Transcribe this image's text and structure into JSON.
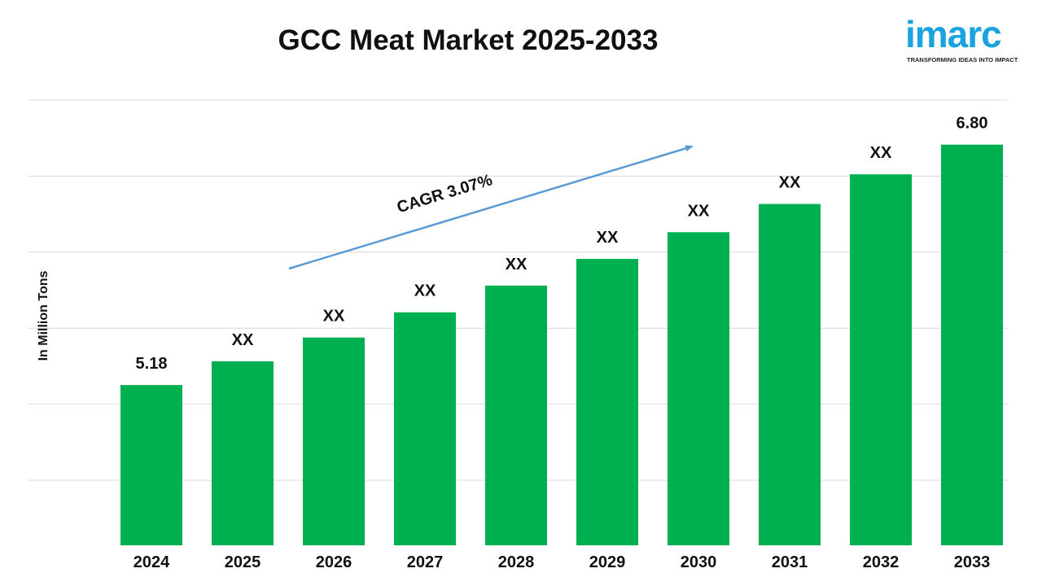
{
  "title": "GCC Meat Market 2025-2033",
  "logo": {
    "word": "imarc",
    "tagline": "TRANSFORMING IDEAS INTO IMPACT"
  },
  "colors": {
    "bar": "#00b050",
    "arrow": "#5b9bd5",
    "grid": "#d9d9d9",
    "logo": "#1aa3df"
  },
  "chart_data": {
    "type": "bar",
    "title": "GCC Meat Market 2025-2033",
    "ylabel": "In Million Tons",
    "xlabel": "",
    "categories": [
      "2024",
      "2025",
      "2026",
      "2027",
      "2028",
      "2029",
      "2030",
      "2031",
      "2032",
      "2033"
    ],
    "values": [
      5.18,
      5.34,
      5.5,
      5.67,
      5.85,
      6.03,
      6.21,
      6.4,
      6.6,
      6.8
    ],
    "data_labels": [
      "5.18",
      "XX",
      "XX",
      "XX",
      "XX",
      "XX",
      "XX",
      "XX",
      "XX",
      "6.80"
    ],
    "ylim": [
      4.1,
      7.1
    ],
    "grid": true,
    "legend": "none",
    "annotation": {
      "text": "CAGR 3.07%",
      "type": "arrow-up-right"
    }
  }
}
